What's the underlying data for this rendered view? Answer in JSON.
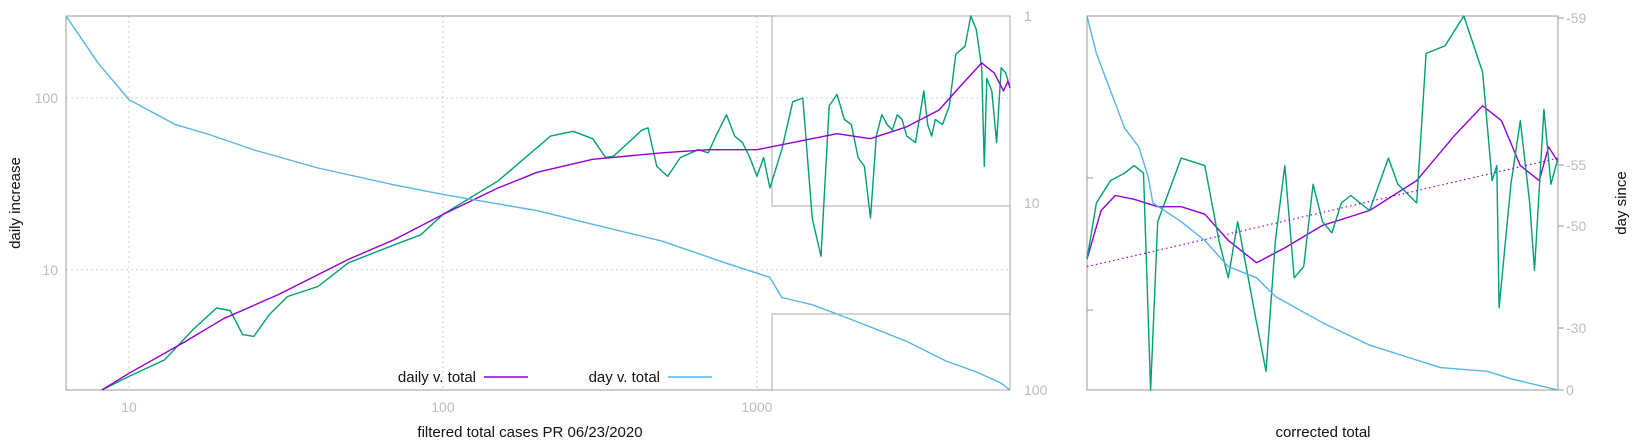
{
  "colors": {
    "daily": "#9400d3",
    "day": "#56b4e9",
    "raw": "#009e73",
    "axis": "#999999",
    "tick_text": "#bbbbbb",
    "grid": "#cccccc",
    "inset_frame": "#aaaaaa"
  },
  "chart_data": [
    {
      "type": "line",
      "title": "",
      "xlabel": "filtered total cases PR 06/23/2020",
      "ylabel": "daily increase",
      "x_scale": "log",
      "y_scale": "log",
      "xlim": [
        6.3,
        6400
      ],
      "ylim": [
        2,
        300
      ],
      "y2lim": [
        1,
        100
      ],
      "y2_reversed": true,
      "grid": true,
      "x_ticks": [
        "10",
        "100",
        "1000"
      ],
      "y_ticks": [
        "10",
        "100"
      ],
      "y2_ticks": [
        "1",
        "10",
        "100"
      ],
      "legend": {
        "position": "bottom-center",
        "entries": [
          "daily v. total",
          "day v. total"
        ]
      },
      "series": [
        {
          "name": "daily v. total",
          "color_key": "daily",
          "points": [
            [
              8.2,
              2
            ],
            [
              10,
              2.5
            ],
            [
              15,
              3.8
            ],
            [
              20,
              5.2
            ],
            [
              30,
              7.2
            ],
            [
              50,
              11.5
            ],
            [
              70,
              15
            ],
            [
              100,
              21
            ],
            [
              150,
              30
            ],
            [
              200,
              37
            ],
            [
              300,
              44
            ],
            [
              500,
              48
            ],
            [
              700,
              50
            ],
            [
              1000,
              50
            ],
            [
              1300,
              55
            ],
            [
              1800,
              62
            ],
            [
              2300,
              58
            ],
            [
              3000,
              68
            ],
            [
              3800,
              85
            ],
            [
              4500,
              120
            ],
            [
              5200,
              160
            ],
            [
              5700,
              140
            ],
            [
              6100,
              110
            ],
            [
              6300,
              125
            ],
            [
              6400,
              115
            ]
          ]
        },
        {
          "color_key": "raw",
          "points": [
            [
              8.2,
              2
            ],
            [
              10,
              2.4
            ],
            [
              13,
              3
            ],
            [
              16,
              4.5
            ],
            [
              19,
              6
            ],
            [
              21,
              5.8
            ],
            [
              23,
              4.2
            ],
            [
              25,
              4.1
            ],
            [
              28,
              5.5
            ],
            [
              32,
              7
            ],
            [
              40,
              8
            ],
            [
              50,
              11
            ],
            [
              70,
              14
            ],
            [
              85,
              16
            ],
            [
              100,
              21
            ],
            [
              150,
              33
            ],
            [
              220,
              60
            ],
            [
              260,
              64
            ],
            [
              300,
              58
            ],
            [
              330,
              45
            ],
            [
              350,
              46
            ],
            [
              430,
              65
            ],
            [
              450,
              67
            ],
            [
              480,
              40
            ],
            [
              520,
              35
            ],
            [
              570,
              45
            ],
            [
              650,
              50
            ],
            [
              700,
              48
            ],
            [
              740,
              60
            ],
            [
              800,
              80
            ],
            [
              850,
              60
            ],
            [
              900,
              55
            ],
            [
              950,
              45
            ],
            [
              1000,
              35
            ],
            [
              1050,
              45
            ],
            [
              1100,
              30
            ],
            [
              1200,
              50
            ],
            [
              1300,
              95
            ],
            [
              1400,
              100
            ],
            [
              1500,
              20
            ],
            [
              1600,
              12
            ],
            [
              1700,
              90
            ],
            [
              1800,
              105
            ],
            [
              1900,
              75
            ],
            [
              2000,
              70
            ],
            [
              2100,
              45
            ],
            [
              2200,
              40
            ],
            [
              2300,
              20
            ],
            [
              2400,
              60
            ],
            [
              2500,
              80
            ],
            [
              2600,
              70
            ],
            [
              2700,
              65
            ],
            [
              2800,
              80
            ],
            [
              2900,
              75
            ],
            [
              3000,
              60
            ],
            [
              3200,
              55
            ],
            [
              3400,
              110
            ],
            [
              3500,
              70
            ],
            [
              3600,
              60
            ],
            [
              3700,
              75
            ],
            [
              3900,
              70
            ],
            [
              4100,
              90
            ],
            [
              4300,
              180
            ],
            [
              4600,
              200
            ],
            [
              4800,
              300
            ],
            [
              5000,
              250
            ],
            [
              5200,
              150
            ],
            [
              5300,
              40
            ],
            [
              5400,
              130
            ],
            [
              5600,
              110
            ],
            [
              5800,
              55
            ],
            [
              6000,
              150
            ],
            [
              6200,
              140
            ],
            [
              6400,
              115
            ]
          ]
        },
        {
          "name": "day v. total",
          "color_key": "day",
          "axis": "y2",
          "points": [
            [
              6.3,
              1
            ],
            [
              8,
              1.8
            ],
            [
              10,
              2.8
            ],
            [
              14,
              3.8
            ],
            [
              18,
              4.3
            ],
            [
              25,
              5.2
            ],
            [
              40,
              6.5
            ],
            [
              70,
              8
            ],
            [
              100,
              9
            ],
            [
              200,
              11
            ],
            [
              300,
              13
            ],
            [
              500,
              16
            ],
            [
              800,
              21
            ],
            [
              1100,
              25
            ],
            [
              1200,
              32
            ],
            [
              1500,
              35
            ],
            [
              2000,
              42
            ],
            [
              3000,
              55
            ],
            [
              4000,
              70
            ],
            [
              5000,
              80
            ],
            [
              6000,
              92
            ],
            [
              6400,
              100
            ]
          ]
        }
      ]
    },
    {
      "type": "line",
      "title": "",
      "xlabel": "corrected total",
      "ylabel": "day since",
      "xlim": [
        0,
        1
      ],
      "y2_ticks": [
        "-59",
        "-55",
        "-50",
        "-30",
        "0"
      ],
      "grid": false,
      "series": [
        {
          "color_key": "daily",
          "points": [
            [
              0,
              0.35
            ],
            [
              0.03,
              0.48
            ],
            [
              0.06,
              0.52
            ],
            [
              0.1,
              0.51
            ],
            [
              0.15,
              0.49
            ],
            [
              0.2,
              0.49
            ],
            [
              0.25,
              0.47
            ],
            [
              0.3,
              0.4
            ],
            [
              0.36,
              0.34
            ],
            [
              0.42,
              0.38
            ],
            [
              0.5,
              0.44
            ],
            [
              0.6,
              0.48
            ],
            [
              0.7,
              0.56
            ],
            [
              0.78,
              0.68
            ],
            [
              0.84,
              0.76
            ],
            [
              0.88,
              0.72
            ],
            [
              0.92,
              0.6
            ],
            [
              0.96,
              0.56
            ],
            [
              0.98,
              0.65
            ],
            [
              1.0,
              0.61
            ]
          ]
        },
        {
          "color_key": "raw",
          "points": [
            [
              0,
              0.35
            ],
            [
              0.02,
              0.5
            ],
            [
              0.05,
              0.56
            ],
            [
              0.08,
              0.58
            ],
            [
              0.1,
              0.6
            ],
            [
              0.12,
              0.58
            ],
            [
              0.135,
              0.0
            ],
            [
              0.15,
              0.45
            ],
            [
              0.2,
              0.62
            ],
            [
              0.25,
              0.6
            ],
            [
              0.28,
              0.4
            ],
            [
              0.3,
              0.3
            ],
            [
              0.32,
              0.45
            ],
            [
              0.36,
              0.18
            ],
            [
              0.38,
              0.05
            ],
            [
              0.4,
              0.4
            ],
            [
              0.42,
              0.6
            ],
            [
              0.44,
              0.3
            ],
            [
              0.46,
              0.33
            ],
            [
              0.48,
              0.55
            ],
            [
              0.5,
              0.45
            ],
            [
              0.52,
              0.42
            ],
            [
              0.54,
              0.5
            ],
            [
              0.56,
              0.52
            ],
            [
              0.6,
              0.48
            ],
            [
              0.64,
              0.62
            ],
            [
              0.66,
              0.55
            ],
            [
              0.7,
              0.5
            ],
            [
              0.72,
              0.9
            ],
            [
              0.76,
              0.92
            ],
            [
              0.8,
              1.0
            ],
            [
              0.84,
              0.85
            ],
            [
              0.86,
              0.56
            ],
            [
              0.87,
              0.6
            ],
            [
              0.875,
              0.22
            ],
            [
              0.9,
              0.55
            ],
            [
              0.92,
              0.72
            ],
            [
              0.94,
              0.5
            ],
            [
              0.95,
              0.32
            ],
            [
              0.97,
              0.75
            ],
            [
              0.985,
              0.55
            ],
            [
              1.0,
              0.62
            ]
          ]
        },
        {
          "color_key": "daily",
          "style": "dotted",
          "points": [
            [
              0,
              0.33
            ],
            [
              1.0,
              0.62
            ]
          ]
        },
        {
          "color_key": "day",
          "points": [
            [
              0,
              1.0
            ],
            [
              0.02,
              0.9
            ],
            [
              0.05,
              0.8
            ],
            [
              0.08,
              0.7
            ],
            [
              0.11,
              0.65
            ],
            [
              0.13,
              0.57
            ],
            [
              0.14,
              0.5
            ],
            [
              0.2,
              0.45
            ],
            [
              0.25,
              0.4
            ],
            [
              0.3,
              0.33
            ],
            [
              0.36,
              0.3
            ],
            [
              0.4,
              0.25
            ],
            [
              0.5,
              0.18
            ],
            [
              0.6,
              0.12
            ],
            [
              0.75,
              0.06
            ],
            [
              0.85,
              0.05
            ],
            [
              0.9,
              0.03
            ],
            [
              1.0,
              0.0
            ]
          ]
        }
      ]
    }
  ]
}
